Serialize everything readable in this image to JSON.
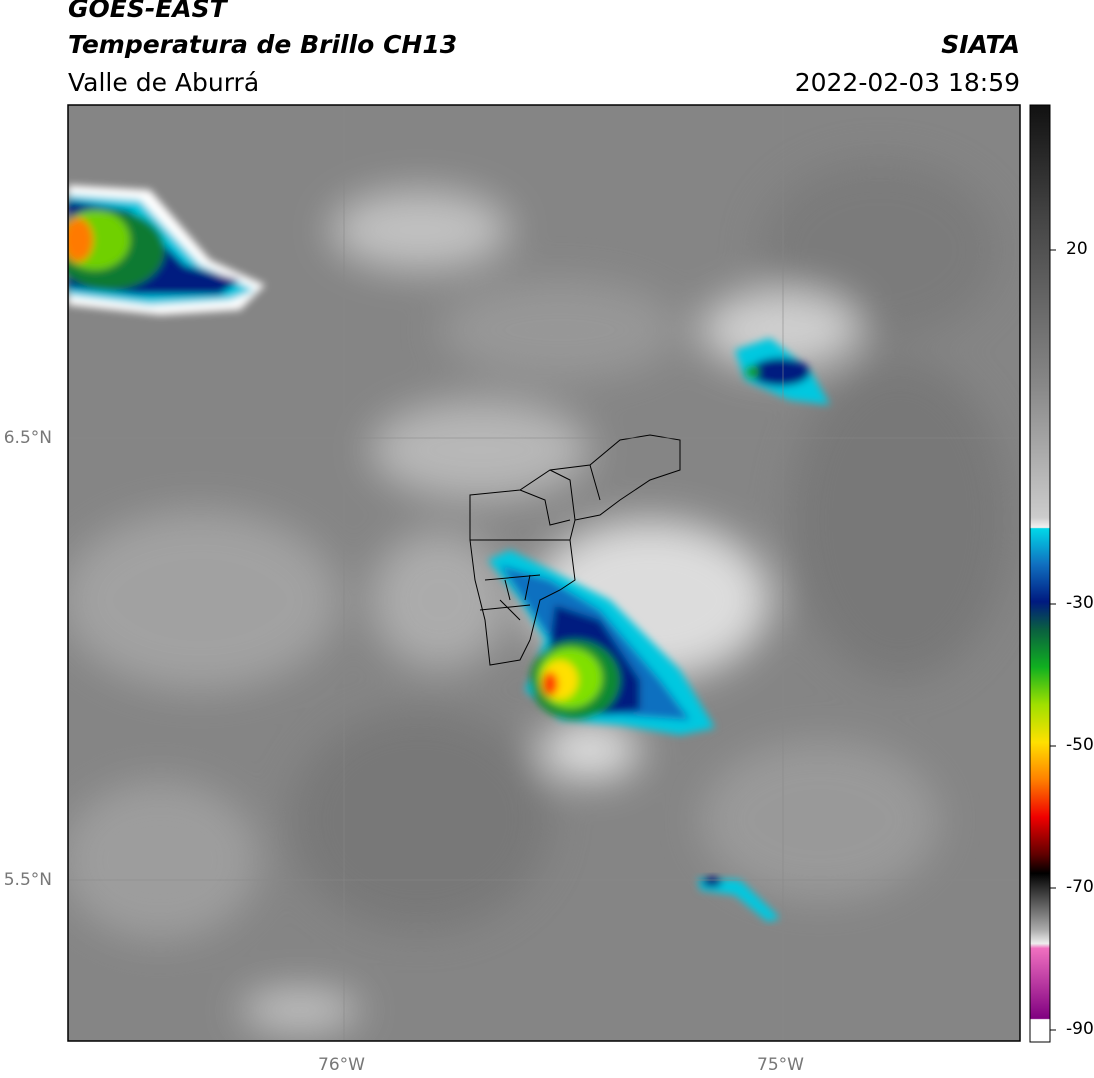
{
  "header": {
    "title": "GOES-EAST",
    "subtitle": "Temperatura de Brillo CH13",
    "region": "Valle de Aburrá",
    "source": "SIATA",
    "datetime": "2022-02-03 18:59"
  },
  "map": {
    "lat_ticks": [
      "6.5°N",
      "5.5°N"
    ],
    "lon_ticks": [
      "76°W",
      "75°W"
    ]
  },
  "colorbar": {
    "ticks": [
      20,
      -30,
      -50,
      -70,
      -90
    ]
  }
}
